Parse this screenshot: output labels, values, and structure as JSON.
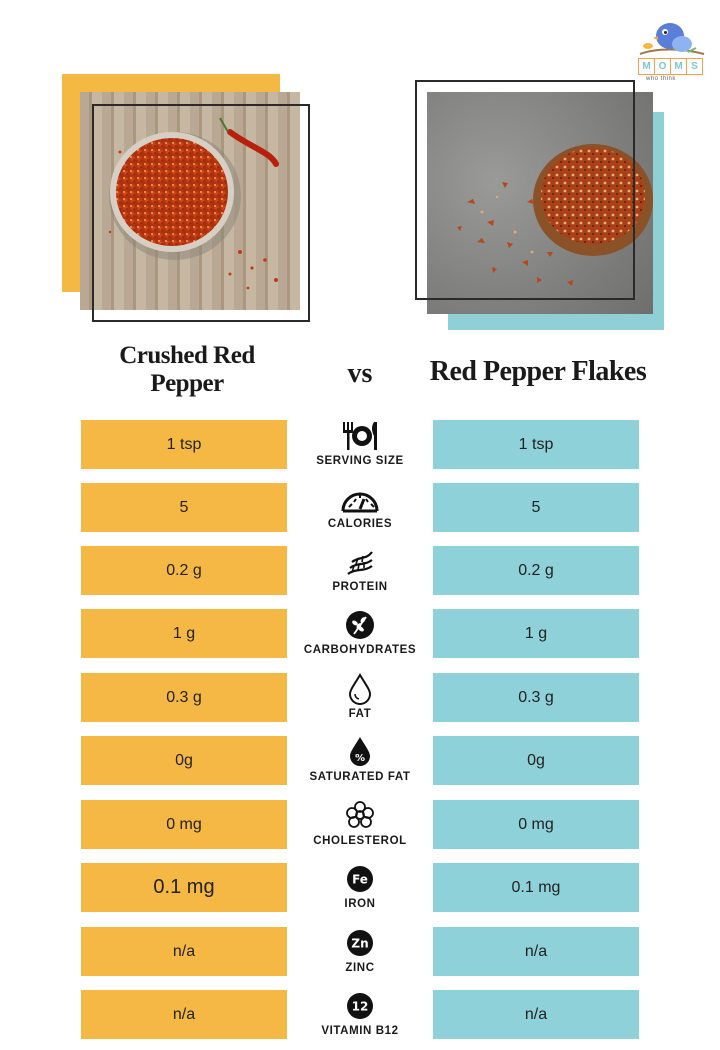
{
  "logo": {
    "letters": [
      "M",
      "O",
      "M",
      "S"
    ],
    "tagline": "who think"
  },
  "titles": {
    "left": "Crushed Red Pepper",
    "left_line1": "Crushed Red",
    "left_line2": "Pepper",
    "vs": "vs",
    "right": "Red Pepper Flakes"
  },
  "colors": {
    "left_accent": "#f6b844",
    "right_accent": "#8fd1d8",
    "frame_line": "#2a2a2a"
  },
  "rows": [
    {
      "label": "SERVING SIZE",
      "icon": "utensils-plate-icon",
      "left": "1 tsp",
      "right": "1 tsp"
    },
    {
      "label": "CALORIES",
      "icon": "gauge-icon",
      "left": "5",
      "right": "5"
    },
    {
      "label": "PROTEIN",
      "icon": "dna-icon",
      "left": "0.2 g",
      "right": "0.2 g"
    },
    {
      "label": "CARBOHYDRATES",
      "icon": "wheat-icon",
      "left": "1 g",
      "right": "1 g"
    },
    {
      "label": "FAT",
      "icon": "drop-icon",
      "left": "0.3 g",
      "right": "0.3 g"
    },
    {
      "label": "SATURATED FAT",
      "icon": "drop-percent-icon",
      "left": "0g",
      "right": "0g"
    },
    {
      "label": "CHOLESTEROL",
      "icon": "molecule-icon",
      "left": "0 mg",
      "right": "0 mg"
    },
    {
      "label": "IRON",
      "icon": "fe-icon",
      "badge": "Fe",
      "left": "0.1 mg",
      "right": "0.1 mg"
    },
    {
      "label": "ZINC",
      "icon": "zn-icon",
      "badge": "Zn",
      "left": "n/a",
      "right": "n/a"
    },
    {
      "label": "VITAMIN B12",
      "icon": "b12-icon",
      "badge": "12",
      "left": "n/a",
      "right": "n/a"
    }
  ]
}
